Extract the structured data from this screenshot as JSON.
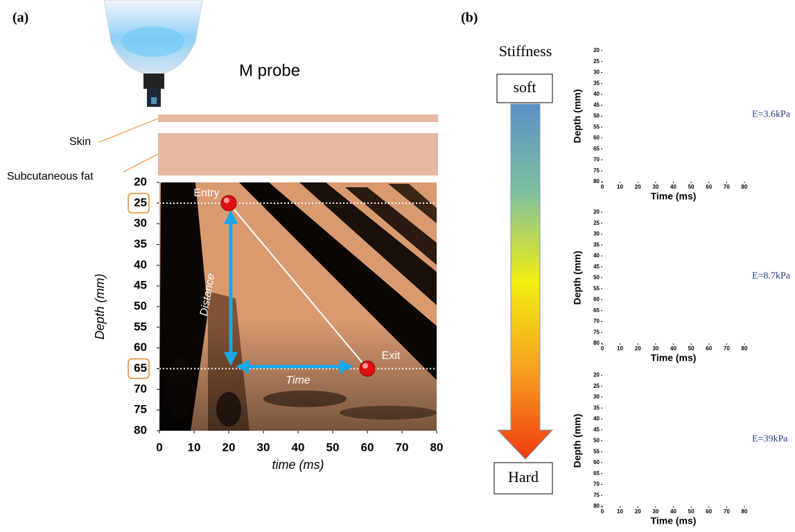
{
  "panel_a": {
    "label": "(a)",
    "probe_label": "M probe",
    "layers": [
      "Skin",
      "Subcutaneous fat"
    ],
    "plot": {
      "x_label": "time (ms)",
      "y_label": "Depth (mm)",
      "xlim": [
        0,
        80
      ],
      "ylim": [
        20,
        80
      ],
      "xticks": [
        0,
        10,
        20,
        30,
        40,
        50,
        60,
        70,
        80
      ],
      "yticks": [
        20,
        25,
        30,
        35,
        40,
        45,
        50,
        55,
        60,
        65,
        70,
        75,
        80
      ],
      "highlighted_depths": [
        25,
        65
      ],
      "entry": {
        "label": "Entry",
        "time": 20,
        "depth": 25
      },
      "exit": {
        "label": "Exit",
        "time": 60,
        "depth": 65
      },
      "distance_label": "Distance",
      "time_label": "Time"
    }
  },
  "panel_b": {
    "label": "(b)",
    "stiffness": {
      "title": "Stiffness",
      "soft": "soft",
      "hard": "Hard"
    },
    "x_label": "Time (ms)",
    "y_label": "Depth (mm)",
    "xlim": [
      0,
      80
    ],
    "ylim": [
      20,
      80
    ],
    "xticks": [
      0,
      10,
      20,
      30,
      40,
      50,
      60,
      70,
      80
    ],
    "yticks": [
      20,
      25,
      30,
      35,
      40,
      45,
      50,
      55,
      60,
      65,
      70,
      75,
      80
    ],
    "plots": [
      {
        "modulus": "E=3.6kPa"
      },
      {
        "modulus": "E=8.7kPa"
      },
      {
        "modulus": "E=39kPa"
      }
    ]
  }
}
